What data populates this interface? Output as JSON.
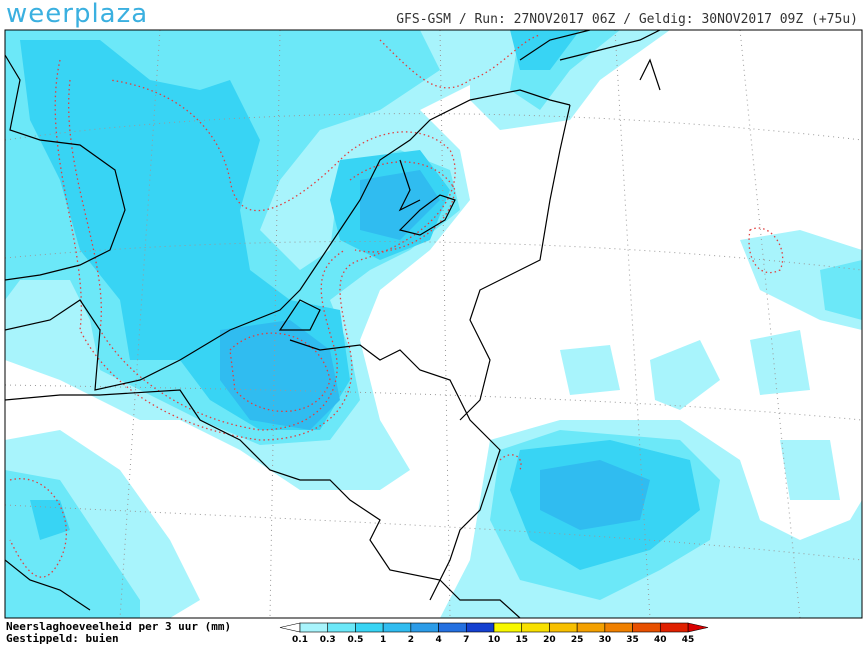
{
  "header": {
    "logo": "weerplaza",
    "info": "GFS-GSM / Run: 27NOV2017 06Z / Geldig: 30NOV2017 09Z (+75u)"
  },
  "legend": {
    "title": "Neerslaghoeveelheid per 3 uur (mm)",
    "note": "Gestippeld: buien",
    "ticks": [
      0.1,
      0.3,
      0.5,
      1,
      2,
      4,
      7,
      10,
      15,
      20,
      25,
      30,
      35,
      40,
      45
    ],
    "colors": [
      "#a8f4fc",
      "#6ce8f8",
      "#38d4f4",
      "#30bcf0",
      "#2c9ce8",
      "#2470e0",
      "#1440d0",
      "#f8f800",
      "#f8e000",
      "#f8c000",
      "#f4a000",
      "#f08000",
      "#e85000",
      "#e02000"
    ],
    "low_color": "#ffffff",
    "high_color": "#d80000"
  }
}
